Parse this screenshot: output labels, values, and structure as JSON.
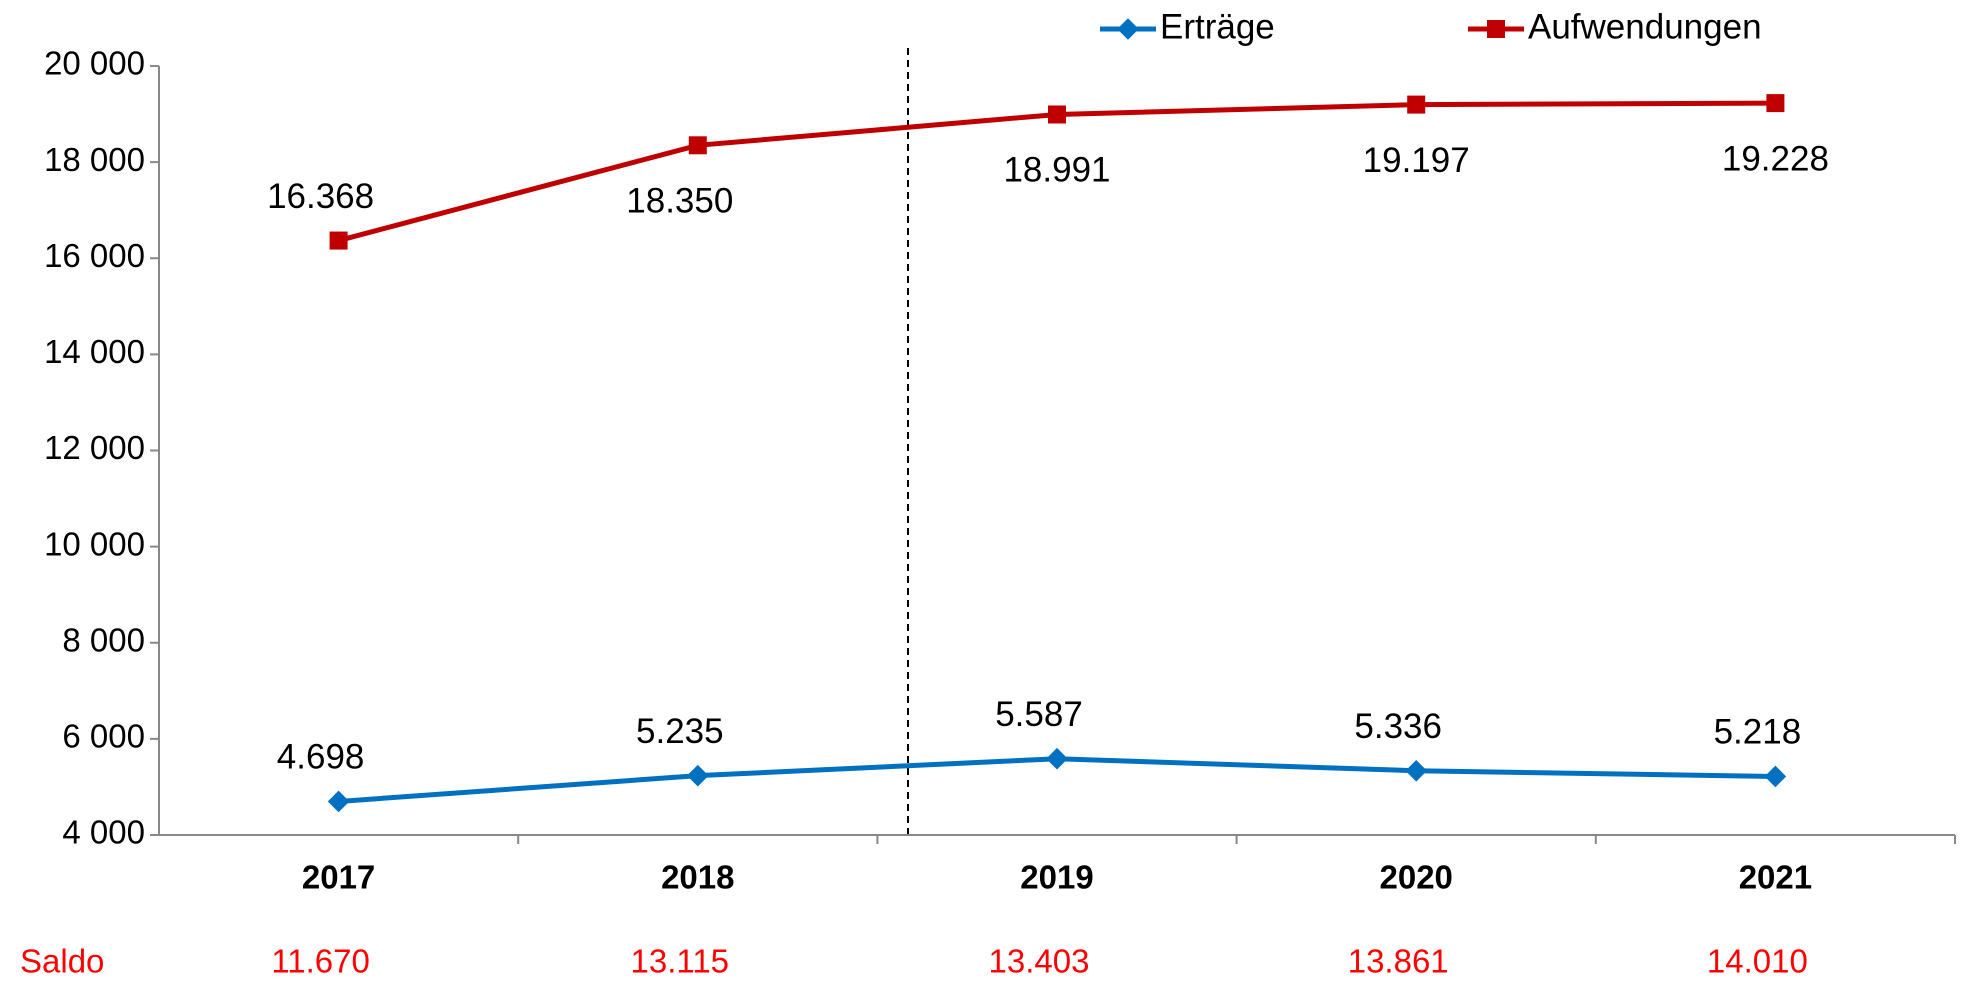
{
  "chart_data": {
    "type": "line",
    "categories": [
      "2017",
      "2018",
      "2019",
      "2020",
      "2021"
    ],
    "series": [
      {
        "name": "Erträge",
        "color": "#0070c0",
        "marker": "diamond",
        "values": [
          4698,
          5235,
          5587,
          5336,
          5218
        ],
        "value_labels": [
          "4.698",
          "5.235",
          "5.587",
          "5.336",
          "5.218"
        ]
      },
      {
        "name": "Aufwendungen",
        "color": "#c00000",
        "marker": "square",
        "values": [
          16368,
          18350,
          18991,
          19197,
          19228
        ],
        "value_labels": [
          "16.368",
          "18.350",
          "18.991",
          "19.197",
          "19.228"
        ]
      }
    ],
    "ylim": [
      4000,
      20000
    ],
    "yticks": [
      {
        "value": 4000,
        "label": "4 000"
      },
      {
        "value": 6000,
        "label": "6 000"
      },
      {
        "value": 8000,
        "label": "8 000"
      },
      {
        "value": 10000,
        "label": "10 000"
      },
      {
        "value": 12000,
        "label": "12 000"
      },
      {
        "value": 14000,
        "label": "14 000"
      },
      {
        "value": 16000,
        "label": "16 000"
      },
      {
        "value": 18000,
        "label": "18 000"
      },
      {
        "value": 20000,
        "label": "20 000"
      }
    ],
    "legend": "top",
    "saldo": {
      "label": "Saldo",
      "color": "#ff0000",
      "values": [
        11670,
        13115,
        13403,
        13861,
        14010
      ],
      "value_labels": [
        "11.670",
        "13.115",
        "13.403",
        "13.861",
        "14.010"
      ]
    }
  }
}
